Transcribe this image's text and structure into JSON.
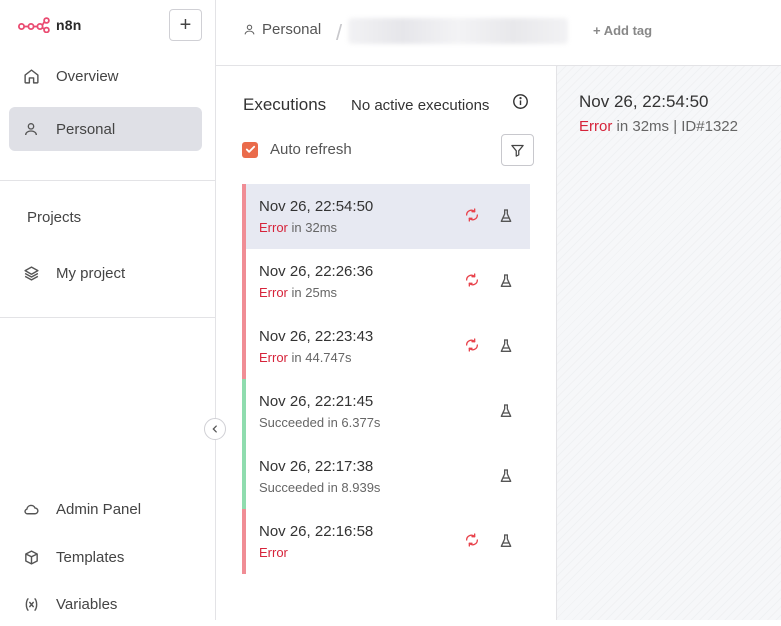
{
  "app": {
    "logo_text": "n8n"
  },
  "sidebar": {
    "items": [
      {
        "label": "Overview",
        "icon": "home-icon"
      },
      {
        "label": "Personal",
        "icon": "user-icon",
        "active": true
      }
    ],
    "projects_title": "Projects",
    "projects": [
      {
        "label": "My project",
        "icon": "layers-icon"
      }
    ],
    "bottom_items": [
      {
        "label": "Admin Panel",
        "icon": "cloud-icon"
      },
      {
        "label": "Templates",
        "icon": "box-icon"
      },
      {
        "label": "Variables",
        "icon": "variable-icon"
      }
    ]
  },
  "header": {
    "breadcrumb_project": "Personal",
    "breadcrumb_separator": "/",
    "add_tag": "+ Add tag"
  },
  "executions": {
    "title": "Executions",
    "status": "No active executions",
    "auto_refresh_label": "Auto refresh",
    "auto_refresh_checked": true,
    "items": [
      {
        "time": "Nov 26, 22:54:50",
        "status": "Error",
        "detail": " in 32ms",
        "retry": true,
        "selected": true
      },
      {
        "time": "Nov 26, 22:26:36",
        "status": "Error",
        "detail": " in 25ms",
        "retry": true
      },
      {
        "time": "Nov 26, 22:23:43",
        "status": "Error",
        "detail": " in 44.747s",
        "retry": true
      },
      {
        "time": "Nov 26, 22:21:45",
        "status": "Succeeded",
        "detail": " in 6.377s",
        "retry": false
      },
      {
        "time": "Nov 26, 22:17:38",
        "status": "Succeeded",
        "detail": " in 8.939s",
        "retry": false
      },
      {
        "time": "Nov 26, 22:16:58",
        "status": "Error",
        "detail": "",
        "retry": true
      }
    ]
  },
  "detail": {
    "time": "Nov 26, 22:54:50",
    "status": "Error",
    "info": " in 32ms | ID#1322"
  },
  "colors": {
    "accent": "#ea6b4b",
    "error": "#d6233a",
    "error_bar": "#f08d95",
    "success_bar": "#8fdcae"
  }
}
